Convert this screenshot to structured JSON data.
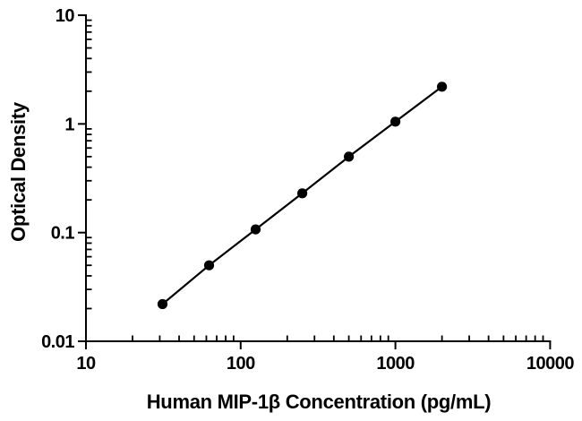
{
  "figure": {
    "background_color": "#ffffff",
    "foreground_color": "#000000"
  },
  "chart_data": {
    "type": "scatter",
    "title": "",
    "xlabel": "Human MIP-1β Concentration (pg/mL)",
    "ylabel": "Optical Density",
    "x_scale": "log",
    "y_scale": "log",
    "xlim": [
      10,
      10000
    ],
    "ylim": [
      0.01,
      10
    ],
    "x_tick_values": [
      10,
      100,
      1000,
      10000
    ],
    "x_tick_labels": [
      "10",
      "100",
      "1000",
      "10000"
    ],
    "y_tick_values": [
      0.01,
      0.1,
      1,
      10
    ],
    "y_tick_labels": [
      "0.01",
      "0.1",
      "1",
      "10"
    ],
    "grid": false,
    "legend": null,
    "marker": "filled-circle",
    "line_style": "solid",
    "series": [
      {
        "name": "standard-curve",
        "x": [
          31.25,
          62.5,
          125,
          250,
          500,
          1000,
          2000
        ],
        "y": [
          0.022,
          0.05,
          0.107,
          0.23,
          0.5,
          1.05,
          2.2
        ]
      }
    ]
  }
}
